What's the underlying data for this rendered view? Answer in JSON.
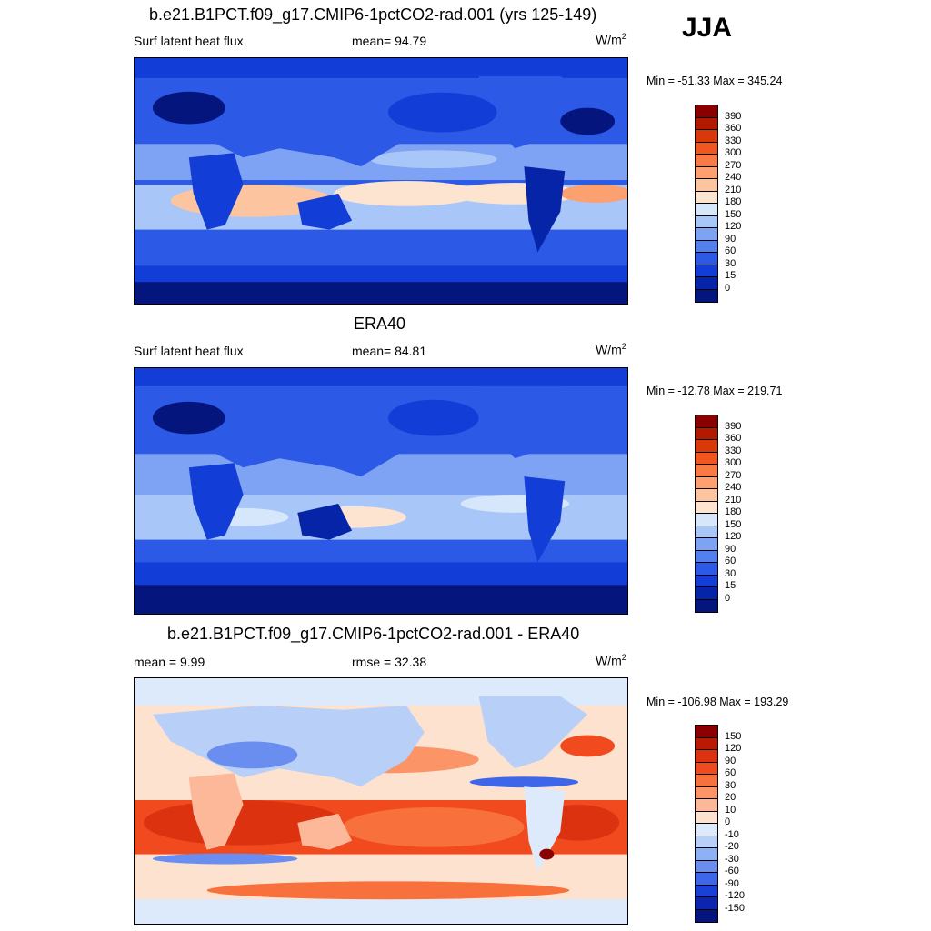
{
  "season": "JJA",
  "panels": [
    {
      "title": "b.e21.B1PCT.f09_g17.CMIP6-1pctCO2-rad.001 (yrs 125-149)",
      "left_label": "Surf latent heat flux",
      "mid_label": "mean=  94.79",
      "units_base": "W/m",
      "units_sup": "2",
      "minmax": "Min = -51.33 Max = 345.24",
      "colorbar": {
        "levels": [
          "390",
          "360",
          "330",
          "300",
          "270",
          "240",
          "210",
          "180",
          "150",
          "120",
          "90",
          "60",
          "30",
          "15",
          "0"
        ],
        "colors": [
          "#8a0000",
          "#b21a00",
          "#d8380a",
          "#f0561e",
          "#f97a45",
          "#fca070",
          "#fcc5a0",
          "#fde4d0",
          "#d6e6fb",
          "#a8c6f8",
          "#7ea2f4",
          "#5280ee",
          "#2c5ae6",
          "#123dd6",
          "#0624a8",
          "#05157e"
        ]
      }
    },
    {
      "title": "ERA40",
      "left_label": "Surf latent heat flux",
      "mid_label": "mean=  84.81",
      "units_base": "W/m",
      "units_sup": "2",
      "minmax": "Min = -12.78 Max = 219.71",
      "colorbar": {
        "levels": [
          "390",
          "360",
          "330",
          "300",
          "270",
          "240",
          "210",
          "180",
          "150",
          "120",
          "90",
          "60",
          "30",
          "15",
          "0"
        ],
        "colors": [
          "#8a0000",
          "#b21a00",
          "#d8380a",
          "#f0561e",
          "#f97a45",
          "#fca070",
          "#fcc5a0",
          "#fde4d0",
          "#d6e6fb",
          "#a8c6f8",
          "#7ea2f4",
          "#5280ee",
          "#2c5ae6",
          "#123dd6",
          "#0624a8",
          "#05157e"
        ]
      }
    },
    {
      "title": "b.e21.B1PCT.f09_g17.CMIP6-1pctCO2-rad.001 - ERA40",
      "left_label": "mean =   9.99",
      "mid_label": "rmse =  32.38",
      "units_base": "W/m",
      "units_sup": "2",
      "minmax": "Min = -106.98 Max = 193.29",
      "colorbar": {
        "levels": [
          "150",
          "120",
          "90",
          "60",
          "30",
          "20",
          "10",
          "0",
          "-10",
          "-20",
          "-30",
          "-60",
          "-90",
          "-120",
          "-150"
        ],
        "colors": [
          "#8a0000",
          "#b81a05",
          "#dc3210",
          "#f04a1e",
          "#f8703c",
          "#fb9466",
          "#fcb898",
          "#fde2d0",
          "#dceafb",
          "#b8d0f8",
          "#8eb0f4",
          "#6a8ef0",
          "#3e66e8",
          "#1a40d8",
          "#0c25b0",
          "#05157e"
        ]
      }
    }
  ]
}
